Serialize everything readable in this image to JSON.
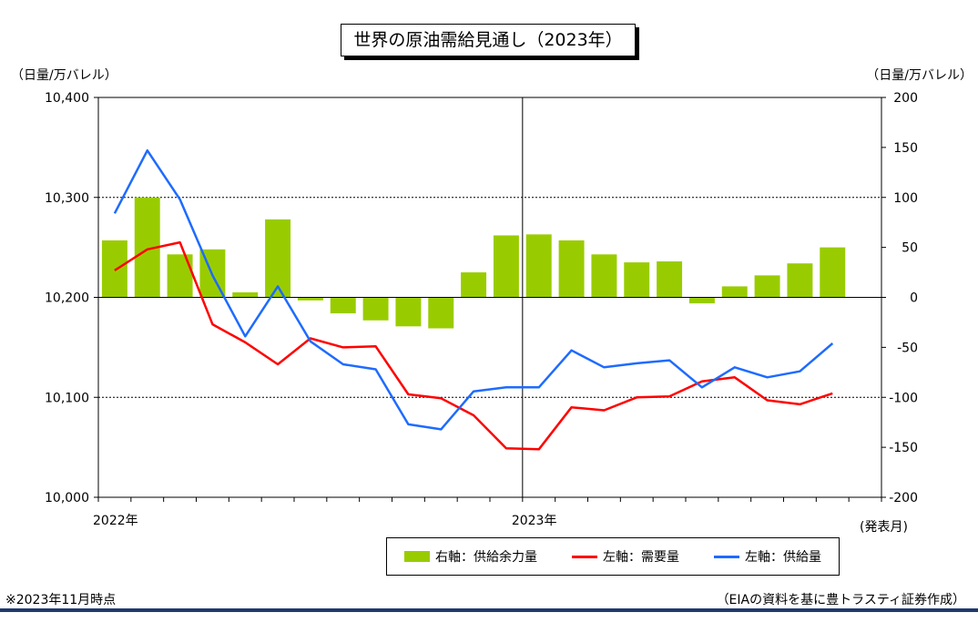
{
  "title": "世界の原油需給見通し（2023年）",
  "left_unit": "（日量/万バレル）",
  "right_unit": "（日量/万バレル）",
  "x_axis_name": "(発表月)",
  "note_left": "※2023年11月時点",
  "note_right": "（EIAの資料を基に豊トラスティ証券作成）",
  "colors": {
    "bar": "#99cc00",
    "demand": "#ff0000",
    "supply": "#1e6bff",
    "footer": "#1f3a6e"
  },
  "legend": [
    {
      "label": "右軸：供給余力量",
      "kind": "bar",
      "color": "#99cc00"
    },
    {
      "label": "左軸：需要量",
      "kind": "line",
      "color": "#ff0000"
    },
    {
      "label": "左軸：供給量",
      "kind": "line",
      "color": "#1e6bff"
    }
  ],
  "chart_data": {
    "type": "bar+line",
    "x_labels": [
      {
        "label": "2022年",
        "index": 0
      },
      {
        "label": "2023年",
        "index": 12
      }
    ],
    "months": 23,
    "left_axis": {
      "ylim": [
        10000,
        10400
      ],
      "ticks": [
        10000,
        10100,
        10200,
        10300,
        10400
      ],
      "tick_labels": [
        "10,000",
        "10,100",
        "10,200",
        "10,300",
        "10,400"
      ]
    },
    "right_axis": {
      "ylim": [
        -200,
        200
      ],
      "ticks": [
        -200,
        -150,
        -100,
        -50,
        0,
        50,
        100,
        150,
        200
      ],
      "tick_labels": [
        "-200",
        "-150",
        "-100",
        "-50",
        "0",
        "50",
        "100",
        "150",
        "200"
      ]
    },
    "gridlines_left": [
      10100,
      10200,
      10300
    ],
    "year_divider_index": 12,
    "series": [
      {
        "name": "右軸：供給余力量",
        "axis": "right",
        "type": "bar",
        "values": [
          57,
          100,
          43,
          48,
          5,
          78,
          -3,
          -16,
          -23,
          -29,
          -31,
          25,
          62,
          63,
          57,
          43,
          35,
          36,
          -6,
          11,
          22,
          34,
          50
        ]
      },
      {
        "name": "左軸：需要量",
        "axis": "left",
        "type": "line",
        "values": [
          10227,
          10248,
          10255,
          10173,
          10155,
          10133,
          10159,
          10150,
          10151,
          10103,
          10099,
          10082,
          10049,
          10048,
          10090,
          10087,
          10100,
          10101,
          10116,
          10120,
          10097,
          10093,
          10104
        ]
      },
      {
        "name": "左軸：供給量",
        "axis": "left",
        "type": "line",
        "values": [
          10284,
          10347,
          10298,
          10222,
          10161,
          10211,
          10156,
          10133,
          10128,
          10073,
          10068,
          10106,
          10110,
          10110,
          10147,
          10130,
          10134,
          10137,
          10110,
          10130,
          10120,
          10126,
          10154
        ]
      }
    ]
  }
}
